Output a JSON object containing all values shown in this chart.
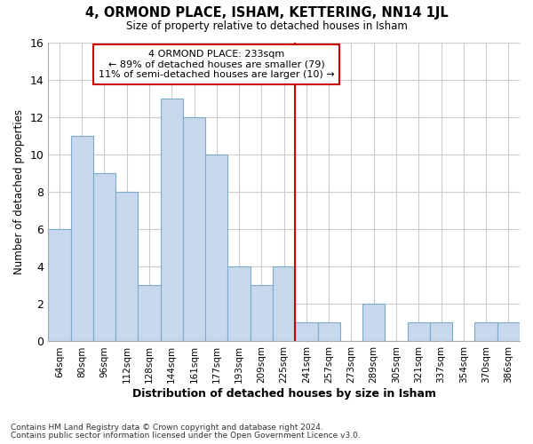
{
  "title": "4, ORMOND PLACE, ISHAM, KETTERING, NN14 1JL",
  "subtitle": "Size of property relative to detached houses in Isham",
  "xlabel": "Distribution of detached houses by size in Isham",
  "ylabel": "Number of detached properties",
  "footnote1": "Contains HM Land Registry data © Crown copyright and database right 2024.",
  "footnote2": "Contains public sector information licensed under the Open Government Licence v3.0.",
  "bin_labels": [
    "64sqm",
    "80sqm",
    "96sqm",
    "112sqm",
    "128sqm",
    "144sqm",
    "161sqm",
    "177sqm",
    "193sqm",
    "209sqm",
    "225sqm",
    "241sqm",
    "257sqm",
    "273sqm",
    "289sqm",
    "305sqm",
    "321sqm",
    "337sqm",
    "354sqm",
    "370sqm",
    "386sqm"
  ],
  "bar_values": [
    6,
    11,
    9,
    8,
    3,
    13,
    12,
    10,
    4,
    3,
    4,
    1,
    1,
    0,
    2,
    0,
    1,
    1,
    0,
    1,
    1
  ],
  "bar_color": "#c8d8ec",
  "bar_edge_color": "#7aaac8",
  "annotation_box_text": "4 ORMOND PLACE: 233sqm\n← 89% of detached houses are smaller (79)\n11% of semi-detached houses are larger (10) →",
  "vline_x_index": 10.5,
  "vline_color": "#cc0000",
  "annotation_box_color": "#ffffff",
  "annotation_box_edge_color": "#cc0000",
  "grid_color": "#cccccc",
  "background_color": "#ffffff",
  "ylim": [
    0,
    16
  ],
  "yticks": [
    0,
    2,
    4,
    6,
    8,
    10,
    12,
    14,
    16
  ]
}
